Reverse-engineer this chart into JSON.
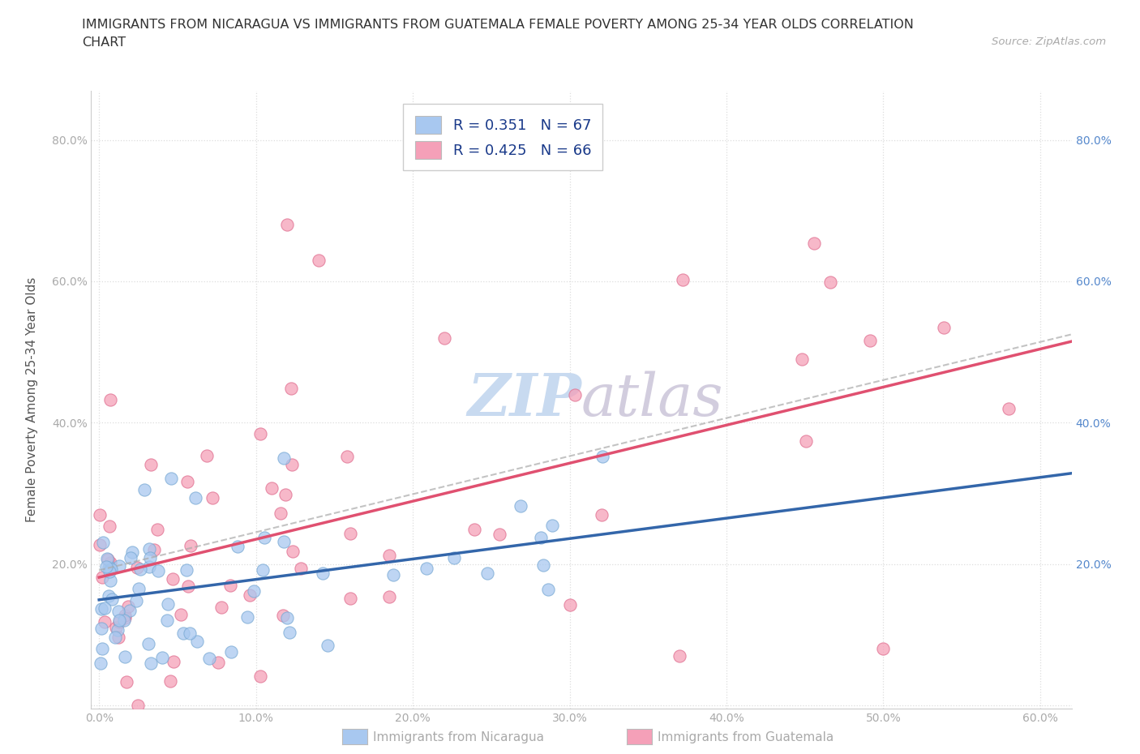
{
  "title_line1": "IMMIGRANTS FROM NICARAGUA VS IMMIGRANTS FROM GUATEMALA FEMALE POVERTY AMONG 25-34 YEAR OLDS CORRELATION",
  "title_line2": "CHART",
  "source": "Source: ZipAtlas.com",
  "ylabel": "Female Poverty Among 25-34 Year Olds",
  "xlim": [
    -0.005,
    0.62
  ],
  "ylim": [
    -0.005,
    0.87
  ],
  "xticks": [
    0.0,
    0.1,
    0.2,
    0.3,
    0.4,
    0.5,
    0.6
  ],
  "yticks": [
    0.0,
    0.2,
    0.4,
    0.6,
    0.8
  ],
  "nicaragua_color": "#a8c8f0",
  "nicaragua_edge_color": "#7aaad4",
  "guatemala_color": "#f5a0b8",
  "guatemala_edge_color": "#e07090",
  "nicaragua_line_color": "#3366aa",
  "guatemala_line_color": "#e05070",
  "gray_dash_color": "#aaaaaa",
  "R_nicaragua": 0.351,
  "N_nicaragua": 67,
  "R_guatemala": 0.425,
  "N_guatemala": 66,
  "legend_label_nicaragua": "Immigrants from Nicaragua",
  "legend_label_guatemala": "Immigrants from Guatemala",
  "watermark": "ZIPAtlas",
  "watermark_color": "#c8daf0",
  "background_color": "#ffffff",
  "grid_color": "#dddddd",
  "title_color": "#333333",
  "axis_label_color": "#555555",
  "tick_color": "#aaaaaa",
  "right_tick_color": "#5588cc",
  "legend_text_color": "#1a3a8a",
  "nic_line_intercept": 0.135,
  "nic_line_slope": 0.3,
  "guat_line_intercept": 0.135,
  "guat_line_slope": 0.72
}
